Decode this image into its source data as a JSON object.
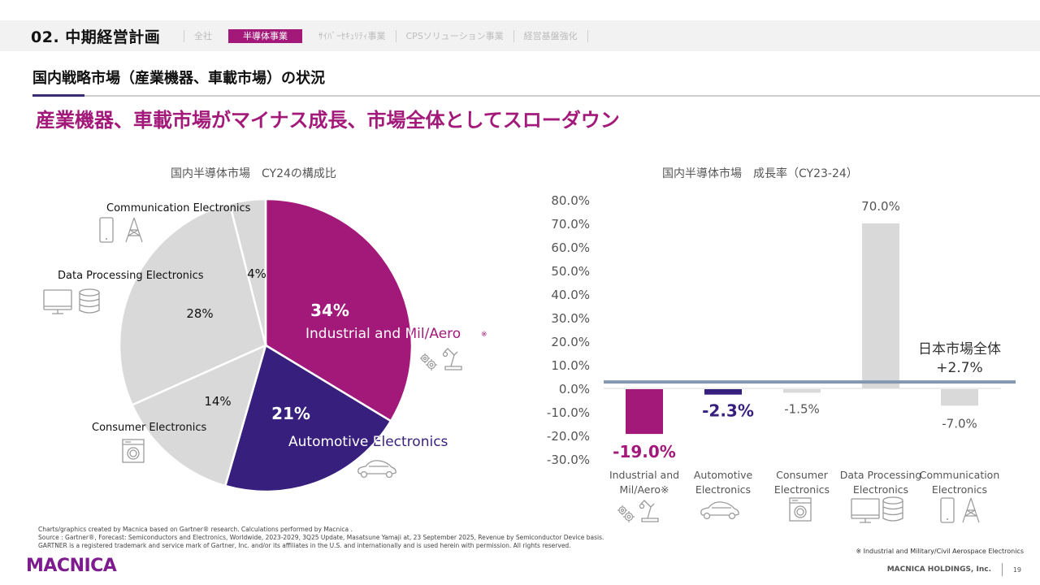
{
  "header": {
    "section_title": "02. 中期経営計画",
    "nav": [
      {
        "label": "全社",
        "active": false
      },
      {
        "label": "半導体事業",
        "active": true
      },
      {
        "label": "ｻｲﾊﾞｰｾｷｭﾘﾃｨ事業",
        "active": false
      },
      {
        "label": "CPSソリューション事業",
        "active": false
      },
      {
        "label": "経営基盤強化",
        "active": false
      }
    ]
  },
  "subtitle": "国内戦略市場（産業機器、車載市場）の状況",
  "headline": "産業機器、車載市場がマイナス成長、市場全体としてスローダウン",
  "colors": {
    "accent_magenta": "#a3197a",
    "accent_purple": "#371f7e",
    "grey": "#d9d9d9",
    "reference_line": "#8497b0"
  },
  "chart_data": [
    {
      "type": "pie",
      "title": "国内半導体市場　CY24の構成比",
      "slices": [
        {
          "label": "Industrial and Mil/Aero",
          "note": "※",
          "value": 34,
          "value_label": "34%",
          "color": "#a3197a",
          "icon": [
            "gears-icon",
            "robot-arm-icon"
          ]
        },
        {
          "label": "Automotive Electronics",
          "value": 21,
          "value_label": "21%",
          "color": "#371f7e",
          "icon": [
            "car-icon"
          ]
        },
        {
          "label": "Consumer Electronics",
          "value": 14,
          "value_label": "14%",
          "color": "#d9d9d9",
          "icon": [
            "washing-machine-icon"
          ]
        },
        {
          "label": "Data Processing Electronics",
          "value": 28,
          "value_label": "28%",
          "color": "#d9d9d9",
          "icon": [
            "monitor-icon",
            "database-icon"
          ]
        },
        {
          "label": "Communication Electronics",
          "value": 4,
          "value_label": "4%",
          "color": "#d9d9d9",
          "icon": [
            "smartphone-icon",
            "antenna-tower-icon"
          ]
        }
      ]
    },
    {
      "type": "bar",
      "title": "国内半導体市場　成長率（CY23-24）",
      "categories": [
        "Industrial and Mil/Aero※",
        "Automotive Electronics",
        "Consumer Electronics",
        "Data Processing Electronics",
        "Communication Electronics"
      ],
      "category_lines": [
        [
          "Industrial and",
          "Mil/Aero※"
        ],
        [
          "Automotive",
          "Electronics"
        ],
        [
          "Consumer",
          "Electronics"
        ],
        [
          "Data Processing",
          "Electronics"
        ],
        [
          "Communication",
          "Electronics"
        ]
      ],
      "values": [
        -19.0,
        -2.3,
        -1.5,
        70.0,
        -7.0
      ],
      "value_labels": [
        "-19.0%",
        "-2.3%",
        "-1.5%",
        "70.0%",
        "-7.0%"
      ],
      "colors": [
        "#a3197a",
        "#371f7e",
        "#d9d9d9",
        "#d9d9d9",
        "#d9d9d9"
      ],
      "yticks": [
        "80.0%",
        "70.0%",
        "60.0%",
        "50.0%",
        "40.0%",
        "30.0%",
        "20.0%",
        "10.0%",
        "0.0%",
        "-10.0%",
        "-20.0%",
        "-30.0%"
      ],
      "ytick_values": [
        80,
        70,
        60,
        50,
        40,
        30,
        20,
        10,
        0,
        -10,
        -20,
        -30
      ],
      "ylim": [
        -30,
        80
      ],
      "reference_line": {
        "value": 2.7,
        "label_line1": "日本市場全体",
        "label_line2": "+2.7%"
      },
      "category_icons": [
        [
          "gears-icon",
          "robot-arm-icon"
        ],
        [
          "car-icon"
        ],
        [
          "washing-machine-icon"
        ],
        [
          "monitor-icon",
          "database-icon"
        ],
        [
          "smartphone-icon",
          "antenna-tower-icon"
        ]
      ],
      "xlabel": "",
      "ylabel": "",
      "grid": false
    }
  ],
  "footer": {
    "footnote_lines": [
      "Charts/graphics created by Macnica based on Gartner® research. Calculations performed by Macnica .",
      "Source : Gartner®, Forecast: Semiconductors and Electronics, Worldwide, 2023-2029, 3Q25 Update, Masatsune Yamaji at, 23 September 2025, Revenue by Semiconductor Device basis.",
      "GARTNER is a registered trademark and service mark of Gartner, Inc. and/or its affiliates in the U.S. and internationally and is used herein with permission. All rights reserved."
    ],
    "logo": "MACNICA",
    "legend_note": "※ Industrial and Military/Civil Aerospace Electronics",
    "company": "MACNICA HOLDINGS, Inc.",
    "page_number": "19"
  }
}
